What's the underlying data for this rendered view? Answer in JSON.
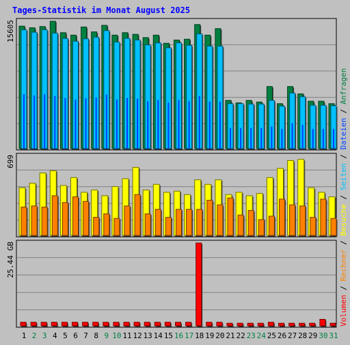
{
  "page": {
    "title": "Tages-Statistik im Monat August 2025"
  },
  "chart_data": {
    "type": "bar",
    "title": "Tages-Statistik im Monat August 2025",
    "categories": [
      "1",
      "2",
      "3",
      "4",
      "5",
      "6",
      "7",
      "8",
      "9",
      "10",
      "11",
      "12",
      "13",
      "14",
      "15",
      "16",
      "17",
      "18",
      "19",
      "20",
      "21",
      "22",
      "23",
      "24",
      "25",
      "26",
      "27",
      "28",
      "29",
      "30",
      "31"
    ],
    "weekend_days": [
      "2",
      "3",
      "9",
      "10",
      "16",
      "17",
      "23",
      "24",
      "30",
      "31"
    ],
    "axis_labels": {
      "hits_max": "15605",
      "visits_max": "699",
      "volume_max": "25.44 GB"
    },
    "legend": [
      {
        "label": "Volumen",
        "color": "#ff0000"
      },
      {
        "label": "Rechner",
        "color": "#ff8000"
      },
      {
        "label": "Besuche",
        "color": "#ffff00"
      },
      {
        "label": "Seiten",
        "color": "#00c0ff"
      },
      {
        "label": "Dateien",
        "color": "#0040ff"
      },
      {
        "label": "Anfragen",
        "color": "#008040"
      }
    ],
    "panels": [
      {
        "name": "hits",
        "ymax": 15605,
        "series": [
          {
            "name": "Anfragen",
            "color": "#008040",
            "values": [
              15000,
              14800,
              14950,
              15600,
              14200,
              13900,
              14900,
              14300,
              15100,
              13900,
              14200,
              14000,
              13600,
              13900,
              12900,
              13300,
              13400,
              15200,
              13900,
              14700,
              5900,
              5600,
              5900,
              5700,
              7600,
              5500,
              7600,
              6700,
              5800,
              5800,
              5500
            ]
          },
          {
            "name": "Dateien",
            "color": "#00c0ff",
            "values": [
              14550,
              14250,
              14550,
              14150,
              13500,
              13150,
              13450,
              13650,
              14450,
              13050,
              13500,
              13300,
              12700,
              12950,
              12350,
              12950,
              12650,
              14050,
              12550,
              12550,
              5500,
              5500,
              5450,
              5450,
              5900,
              5200,
              6800,
              6350,
              5300,
              5300,
              5250
            ]
          },
          {
            "name": "Seiten",
            "color": "#0040ff",
            "values": [
              6650,
              6500,
              6650,
              6450,
              6200,
              6000,
              6150,
              6250,
              6600,
              6000,
              6200,
              6100,
              5800,
              5950,
              5650,
              5950,
              5800,
              6450,
              5750,
              5750,
              2500,
              2500,
              2500,
              2500,
              2700,
              2400,
              3100,
              2900,
              2400,
              2400,
              2400
            ]
          }
        ]
      },
      {
        "name": "visits",
        "ymax": 699,
        "series": [
          {
            "name": "Besuche",
            "color": "#ffff00",
            "values": [
              420,
              460,
              550,
              570,
              440,
              510,
              380,
              400,
              350,
              430,
              500,
              600,
              400,
              450,
              380,
              390,
              360,
              490,
              450,
              490,
              360,
              380,
              350,
              370,
              510,
              590,
              660,
              670,
              420,
              380,
              340
            ]
          },
          {
            "name": "Rechner",
            "color": "#ff8000",
            "values": [
              250,
              260,
              250,
              350,
              290,
              340,
              300,
              160,
              190,
              150,
              260,
              360,
              190,
              230,
              160,
              230,
              230,
              230,
              310,
              270,
              330,
              180,
              220,
              140,
              170,
              320,
              270,
              260,
              160,
              320,
              150
            ]
          }
        ]
      },
      {
        "name": "volume",
        "ymax": 25.44,
        "series": [
          {
            "name": "Volumen",
            "color": "#ff0000",
            "values": [
              1.1,
              1.1,
              1.1,
              1.1,
              1.1,
              1.1,
              1.1,
              1.1,
              1.1,
              1.1,
              1.1,
              1.1,
              1.1,
              1.1,
              1.1,
              1.1,
              1.1,
              25.44,
              1.1,
              1.1,
              0.8,
              0.8,
              0.8,
              0.8,
              1.1,
              0.8,
              0.8,
              0.8,
              0.8,
              2.0,
              0.8
            ]
          }
        ]
      }
    ]
  }
}
